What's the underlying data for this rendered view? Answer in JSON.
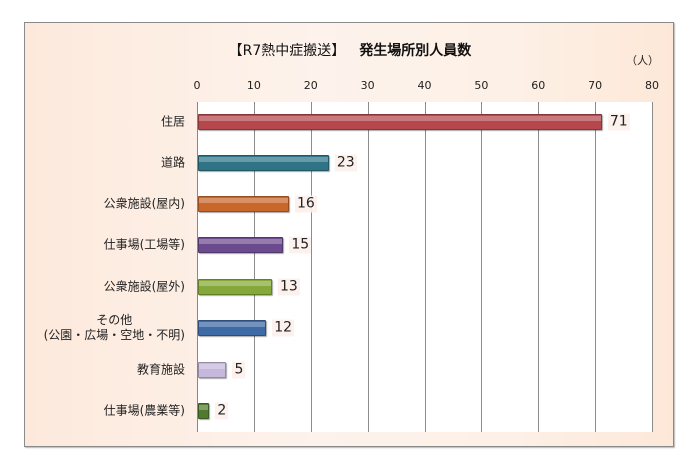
{
  "chart_data": {
    "type": "bar",
    "orientation": "horizontal",
    "title": "【R7熱中症搬送】 発生場所別人員数",
    "title_part1": "【R7熱中症搬送】",
    "title_part2": "発生場所別人員数",
    "unit_label": "（人）",
    "xlabel": "",
    "ylabel": "",
    "xlim": [
      0,
      80
    ],
    "x_ticks": [
      "0",
      "10",
      "20",
      "30",
      "40",
      "50",
      "60",
      "70",
      "80"
    ],
    "grid": true,
    "legend": null,
    "categories": [
      "住居",
      "道路",
      "公衆施設(屋内)",
      "仕事場(工場等)",
      "公衆施設(屋外)",
      "その他\n(公園・広場・空地・不明)",
      "教育施設",
      "仕事場(農業等)"
    ],
    "values": [
      71,
      23,
      16,
      15,
      13,
      12,
      5,
      2
    ],
    "bar_colors": [
      "#b5474d",
      "#2e7486",
      "#c9662a",
      "#6c4a8e",
      "#86a83b",
      "#3e6aa6",
      "#c6b8dc",
      "#4f7a30"
    ]
  },
  "labels": {
    "cat0": "住居",
    "cat1": "道路",
    "cat2": "公衆施設(屋内)",
    "cat3": "仕事場(工場等)",
    "cat4": "公衆施設(屋外)",
    "cat5a": "その他",
    "cat5b": "(公園・広場・空地・不明)",
    "cat6": "教育施設",
    "cat7": "仕事場(農業等)",
    "v0": "71",
    "v1": "23",
    "v2": "16",
    "v3": "15",
    "v4": "13",
    "v5": "12",
    "v6": "5",
    "v7": "2"
  }
}
